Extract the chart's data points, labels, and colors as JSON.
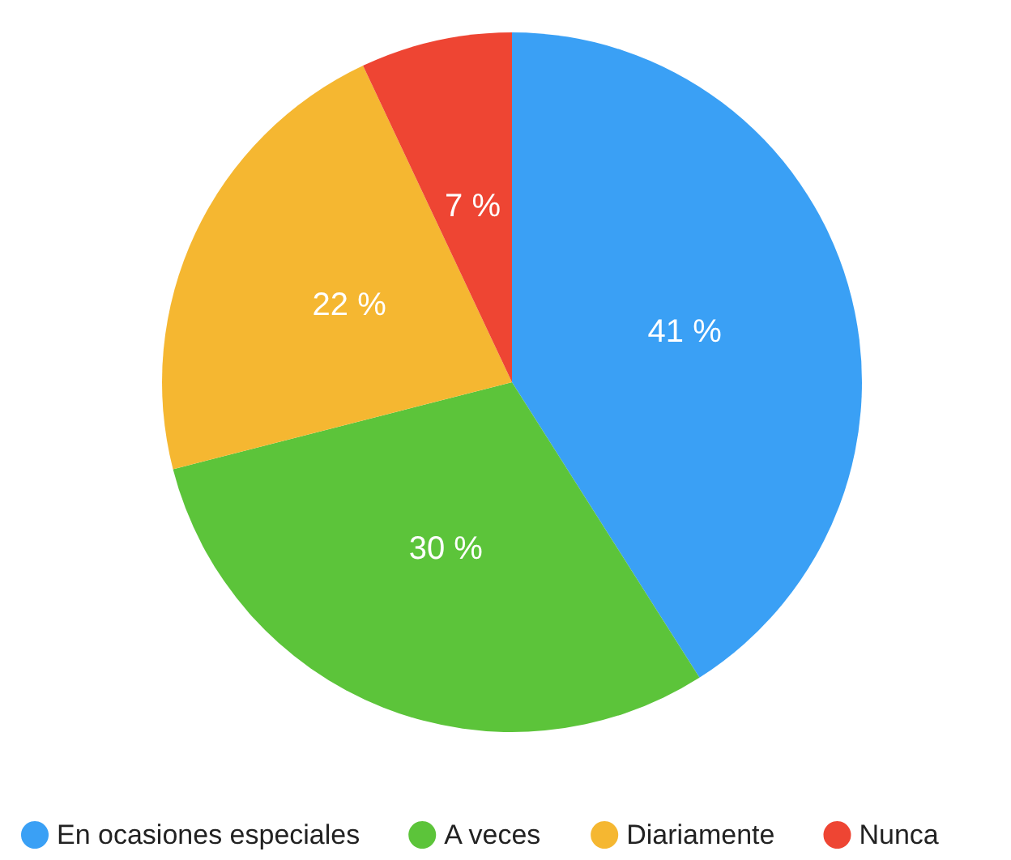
{
  "chart_data": {
    "type": "pie",
    "categories": [
      "En ocasiones especiales",
      "A veces",
      "Diariamente",
      "Nunca"
    ],
    "values": [
      41,
      30,
      22,
      7
    ],
    "value_labels": [
      "41 %",
      "30 %",
      "22 %",
      "7 %"
    ],
    "colors": [
      "#3aa0f5",
      "#5cc43a",
      "#f5b731",
      "#ee4533"
    ],
    "legend": "bottom"
  }
}
